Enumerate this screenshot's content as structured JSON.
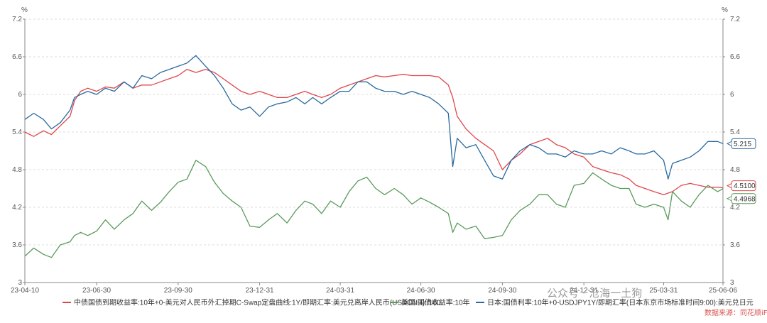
{
  "chart_data": {
    "type": "line",
    "left_axis_unit": "%",
    "right_axis_unit": "%",
    "ylim": [
      3,
      7.2
    ],
    "y_ticks": [
      "3",
      "3.6",
      "4.2",
      "4.8",
      "5.4",
      "6",
      "6.6",
      "7.2"
    ],
    "x_range": [
      "2023-04-10",
      "2025-06-06"
    ],
    "x_ticks": [
      {
        "date": "2023-04-10",
        "label": "23-04-10"
      },
      {
        "date": "2023-06-30",
        "label": "23-06-30"
      },
      {
        "date": "2023-09-30",
        "label": "23-09-30"
      },
      {
        "date": "2023-12-31",
        "label": "23-12-31"
      },
      {
        "date": "2024-03-31",
        "label": "24-03-31"
      },
      {
        "date": "2024-06-30",
        "label": "24-06-30"
      },
      {
        "date": "2024-09-30",
        "label": "24-09-30"
      },
      {
        "date": "2024-12-31",
        "label": "24-12-31"
      },
      {
        "date": "2025-03-31",
        "label": "25-03-31"
      },
      {
        "date": "2025-06-06",
        "label": "25-06-06"
      }
    ],
    "grid": "horizontal-dashed",
    "legend_position": "bottom",
    "series": [
      {
        "name": "中债国债到期收益率:10年+0-美元对人民币外汇掉期C-Swap定盘曲线:1Y/即期汇率:美元兑离岸人民币(USDCNH):/100",
        "color": "#e0474c",
        "end_label": "4.5100",
        "points": [
          [
            "2023-04-10",
            5.4
          ],
          [
            "2023-04-20",
            5.33
          ],
          [
            "2023-05-01",
            5.42
          ],
          [
            "2023-05-10",
            5.36
          ],
          [
            "2023-05-20",
            5.5
          ],
          [
            "2023-05-31",
            5.65
          ],
          [
            "2023-06-05",
            5.9
          ],
          [
            "2023-06-12",
            6.05
          ],
          [
            "2023-06-20",
            6.1
          ],
          [
            "2023-06-30",
            6.05
          ],
          [
            "2023-07-10",
            6.12
          ],
          [
            "2023-07-20",
            6.1
          ],
          [
            "2023-07-31",
            6.2
          ],
          [
            "2023-08-10",
            6.1
          ],
          [
            "2023-08-20",
            6.15
          ],
          [
            "2023-08-31",
            6.15
          ],
          [
            "2023-09-10",
            6.2
          ],
          [
            "2023-09-20",
            6.25
          ],
          [
            "2023-09-30",
            6.3
          ],
          [
            "2023-10-10",
            6.4
          ],
          [
            "2023-10-20",
            6.35
          ],
          [
            "2023-10-31",
            6.4
          ],
          [
            "2023-11-10",
            6.35
          ],
          [
            "2023-11-20",
            6.25
          ],
          [
            "2023-11-30",
            6.15
          ],
          [
            "2023-12-10",
            6.05
          ],
          [
            "2023-12-20",
            6.0
          ],
          [
            "2023-12-31",
            6.05
          ],
          [
            "2024-01-10",
            6.0
          ],
          [
            "2024-01-20",
            5.95
          ],
          [
            "2024-01-31",
            5.95
          ],
          [
            "2024-02-10",
            6.0
          ],
          [
            "2024-02-20",
            6.05
          ],
          [
            "2024-02-29",
            6.0
          ],
          [
            "2024-03-10",
            5.95
          ],
          [
            "2024-03-20",
            6.0
          ],
          [
            "2024-03-31",
            6.1
          ],
          [
            "2024-04-10",
            6.15
          ],
          [
            "2024-04-20",
            6.2
          ],
          [
            "2024-04-30",
            6.25
          ],
          [
            "2024-05-10",
            6.3
          ],
          [
            "2024-05-20",
            6.28
          ],
          [
            "2024-05-31",
            6.3
          ],
          [
            "2024-06-10",
            6.32
          ],
          [
            "2024-06-20",
            6.3
          ],
          [
            "2024-06-30",
            6.3
          ],
          [
            "2024-07-10",
            6.3
          ],
          [
            "2024-07-20",
            6.28
          ],
          [
            "2024-07-31",
            6.15
          ],
          [
            "2024-08-05",
            5.95
          ],
          [
            "2024-08-10",
            5.65
          ],
          [
            "2024-08-20",
            5.45
          ],
          [
            "2024-08-31",
            5.3
          ],
          [
            "2024-09-10",
            5.2
          ],
          [
            "2024-09-20",
            5.1
          ],
          [
            "2024-09-30",
            4.8
          ],
          [
            "2024-10-10",
            4.95
          ],
          [
            "2024-10-20",
            5.05
          ],
          [
            "2024-10-31",
            5.2
          ],
          [
            "2024-11-10",
            5.25
          ],
          [
            "2024-11-20",
            5.3
          ],
          [
            "2024-11-30",
            5.2
          ],
          [
            "2024-12-10",
            5.15
          ],
          [
            "2024-12-20",
            5.05
          ],
          [
            "2024-12-31",
            5.0
          ],
          [
            "2025-01-10",
            4.85
          ],
          [
            "2025-01-20",
            4.8
          ],
          [
            "2025-01-31",
            4.75
          ],
          [
            "2025-02-10",
            4.72
          ],
          [
            "2025-02-20",
            4.65
          ],
          [
            "2025-02-28",
            4.55
          ],
          [
            "2025-03-10",
            4.5
          ],
          [
            "2025-03-20",
            4.45
          ],
          [
            "2025-03-31",
            4.4
          ],
          [
            "2025-04-10",
            4.45
          ],
          [
            "2025-04-20",
            4.55
          ],
          [
            "2025-04-30",
            4.58
          ],
          [
            "2025-05-10",
            4.55
          ],
          [
            "2025-05-20",
            4.52
          ],
          [
            "2025-05-31",
            4.52
          ],
          [
            "2025-06-06",
            4.51
          ]
        ]
      },
      {
        "name": "美国:国债收益率:10年",
        "color": "#5a9a5c",
        "end_label": "4.4968",
        "points": [
          [
            "2023-04-10",
            3.42
          ],
          [
            "2023-04-20",
            3.55
          ],
          [
            "2023-05-01",
            3.45
          ],
          [
            "2023-05-10",
            3.4
          ],
          [
            "2023-05-20",
            3.6
          ],
          [
            "2023-05-31",
            3.65
          ],
          [
            "2023-06-05",
            3.75
          ],
          [
            "2023-06-12",
            3.8
          ],
          [
            "2023-06-20",
            3.75
          ],
          [
            "2023-06-30",
            3.82
          ],
          [
            "2023-07-10",
            4.0
          ],
          [
            "2023-07-20",
            3.85
          ],
          [
            "2023-07-31",
            4.0
          ],
          [
            "2023-08-10",
            4.1
          ],
          [
            "2023-08-20",
            4.3
          ],
          [
            "2023-08-31",
            4.15
          ],
          [
            "2023-09-10",
            4.28
          ],
          [
            "2023-09-20",
            4.45
          ],
          [
            "2023-09-30",
            4.6
          ],
          [
            "2023-10-10",
            4.65
          ],
          [
            "2023-10-20",
            4.95
          ],
          [
            "2023-10-31",
            4.85
          ],
          [
            "2023-11-10",
            4.6
          ],
          [
            "2023-11-20",
            4.42
          ],
          [
            "2023-11-30",
            4.3
          ],
          [
            "2023-12-10",
            4.2
          ],
          [
            "2023-12-20",
            3.9
          ],
          [
            "2023-12-31",
            3.88
          ],
          [
            "2024-01-10",
            4.0
          ],
          [
            "2024-01-20",
            4.1
          ],
          [
            "2024-01-31",
            3.95
          ],
          [
            "2024-02-10",
            4.15
          ],
          [
            "2024-02-20",
            4.3
          ],
          [
            "2024-02-29",
            4.25
          ],
          [
            "2024-03-10",
            4.1
          ],
          [
            "2024-03-20",
            4.3
          ],
          [
            "2024-03-31",
            4.2
          ],
          [
            "2024-04-10",
            4.45
          ],
          [
            "2024-04-20",
            4.62
          ],
          [
            "2024-04-30",
            4.68
          ],
          [
            "2024-05-10",
            4.5
          ],
          [
            "2024-05-20",
            4.4
          ],
          [
            "2024-05-31",
            4.5
          ],
          [
            "2024-06-10",
            4.4
          ],
          [
            "2024-06-20",
            4.25
          ],
          [
            "2024-06-30",
            4.35
          ],
          [
            "2024-07-10",
            4.28
          ],
          [
            "2024-07-20",
            4.2
          ],
          [
            "2024-07-31",
            4.1
          ],
          [
            "2024-08-05",
            3.8
          ],
          [
            "2024-08-10",
            3.95
          ],
          [
            "2024-08-20",
            3.85
          ],
          [
            "2024-08-31",
            3.9
          ],
          [
            "2024-09-10",
            3.7
          ],
          [
            "2024-09-20",
            3.72
          ],
          [
            "2024-09-30",
            3.75
          ],
          [
            "2024-10-10",
            4.0
          ],
          [
            "2024-10-20",
            4.15
          ],
          [
            "2024-10-31",
            4.25
          ],
          [
            "2024-11-10",
            4.4
          ],
          [
            "2024-11-20",
            4.4
          ],
          [
            "2024-11-30",
            4.25
          ],
          [
            "2024-12-10",
            4.2
          ],
          [
            "2024-12-20",
            4.55
          ],
          [
            "2024-12-31",
            4.58
          ],
          [
            "2025-01-10",
            4.75
          ],
          [
            "2025-01-20",
            4.65
          ],
          [
            "2025-01-31",
            4.55
          ],
          [
            "2025-02-10",
            4.5
          ],
          [
            "2025-02-20",
            4.5
          ],
          [
            "2025-02-28",
            4.25
          ],
          [
            "2025-03-10",
            4.2
          ],
          [
            "2025-03-20",
            4.25
          ],
          [
            "2025-03-31",
            4.2
          ],
          [
            "2025-04-05",
            4.0
          ],
          [
            "2025-04-10",
            4.45
          ],
          [
            "2025-04-20",
            4.3
          ],
          [
            "2025-04-30",
            4.2
          ],
          [
            "2025-05-10",
            4.4
          ],
          [
            "2025-05-20",
            4.55
          ],
          [
            "2025-05-31",
            4.45
          ],
          [
            "2025-06-06",
            4.4968
          ]
        ]
      },
      {
        "name": "日本:国债利率:10年+0-USDJPY1Y/即期汇率(日本东京市场标准时间9:00):美元兑日元",
        "color": "#2a6aa0",
        "end_label": "5.215",
        "points": [
          [
            "2023-04-10",
            5.6
          ],
          [
            "2023-04-20",
            5.7
          ],
          [
            "2023-05-01",
            5.6
          ],
          [
            "2023-05-10",
            5.45
          ],
          [
            "2023-05-20",
            5.55
          ],
          [
            "2023-05-31",
            5.75
          ],
          [
            "2023-06-05",
            5.95
          ],
          [
            "2023-06-12",
            6.0
          ],
          [
            "2023-06-20",
            6.05
          ],
          [
            "2023-06-30",
            6.0
          ],
          [
            "2023-07-10",
            6.1
          ],
          [
            "2023-07-20",
            6.05
          ],
          [
            "2023-07-31",
            6.2
          ],
          [
            "2023-08-10",
            6.1
          ],
          [
            "2023-08-20",
            6.3
          ],
          [
            "2023-08-31",
            6.25
          ],
          [
            "2023-09-10",
            6.35
          ],
          [
            "2023-09-20",
            6.4
          ],
          [
            "2023-09-30",
            6.45
          ],
          [
            "2023-10-10",
            6.5
          ],
          [
            "2023-10-20",
            6.62
          ],
          [
            "2023-10-31",
            6.45
          ],
          [
            "2023-11-10",
            6.3
          ],
          [
            "2023-11-20",
            6.1
          ],
          [
            "2023-11-30",
            5.85
          ],
          [
            "2023-12-10",
            5.75
          ],
          [
            "2023-12-20",
            5.8
          ],
          [
            "2023-12-31",
            5.65
          ],
          [
            "2024-01-10",
            5.8
          ],
          [
            "2024-01-20",
            5.85
          ],
          [
            "2024-01-31",
            5.88
          ],
          [
            "2024-02-10",
            5.95
          ],
          [
            "2024-02-20",
            5.85
          ],
          [
            "2024-02-29",
            5.95
          ],
          [
            "2024-03-10",
            5.85
          ],
          [
            "2024-03-20",
            5.95
          ],
          [
            "2024-03-31",
            6.05
          ],
          [
            "2024-04-10",
            6.05
          ],
          [
            "2024-04-20",
            6.2
          ],
          [
            "2024-04-30",
            6.2
          ],
          [
            "2024-05-10",
            6.1
          ],
          [
            "2024-05-20",
            6.05
          ],
          [
            "2024-05-31",
            6.05
          ],
          [
            "2024-06-10",
            6.0
          ],
          [
            "2024-06-20",
            6.05
          ],
          [
            "2024-06-30",
            6.0
          ],
          [
            "2024-07-10",
            5.95
          ],
          [
            "2024-07-20",
            5.85
          ],
          [
            "2024-07-31",
            5.7
          ],
          [
            "2024-08-05",
            4.85
          ],
          [
            "2024-08-10",
            5.3
          ],
          [
            "2024-08-20",
            5.15
          ],
          [
            "2024-08-31",
            5.2
          ],
          [
            "2024-09-10",
            4.95
          ],
          [
            "2024-09-20",
            4.7
          ],
          [
            "2024-09-30",
            4.65
          ],
          [
            "2024-10-10",
            4.95
          ],
          [
            "2024-10-20",
            5.1
          ],
          [
            "2024-10-31",
            5.2
          ],
          [
            "2024-11-10",
            5.15
          ],
          [
            "2024-11-20",
            5.05
          ],
          [
            "2024-11-30",
            5.05
          ],
          [
            "2024-12-10",
            5.0
          ],
          [
            "2024-12-20",
            5.1
          ],
          [
            "2024-12-31",
            5.05
          ],
          [
            "2025-01-10",
            5.05
          ],
          [
            "2025-01-20",
            5.1
          ],
          [
            "2025-01-31",
            5.05
          ],
          [
            "2025-02-10",
            5.15
          ],
          [
            "2025-02-20",
            5.1
          ],
          [
            "2025-02-28",
            5.05
          ],
          [
            "2025-03-10",
            5.05
          ],
          [
            "2025-03-20",
            5.1
          ],
          [
            "2025-03-31",
            4.95
          ],
          [
            "2025-04-05",
            4.65
          ],
          [
            "2025-04-10",
            4.9
          ],
          [
            "2025-04-20",
            4.95
          ],
          [
            "2025-04-30",
            5.0
          ],
          [
            "2025-05-10",
            5.1
          ],
          [
            "2025-05-20",
            5.25
          ],
          [
            "2025-05-31",
            5.25
          ],
          [
            "2025-06-06",
            5.215
          ]
        ]
      }
    ]
  },
  "watermark": "公众号 · 沧海一土狗",
  "source_text": "数据来源：同花顺iFinD"
}
